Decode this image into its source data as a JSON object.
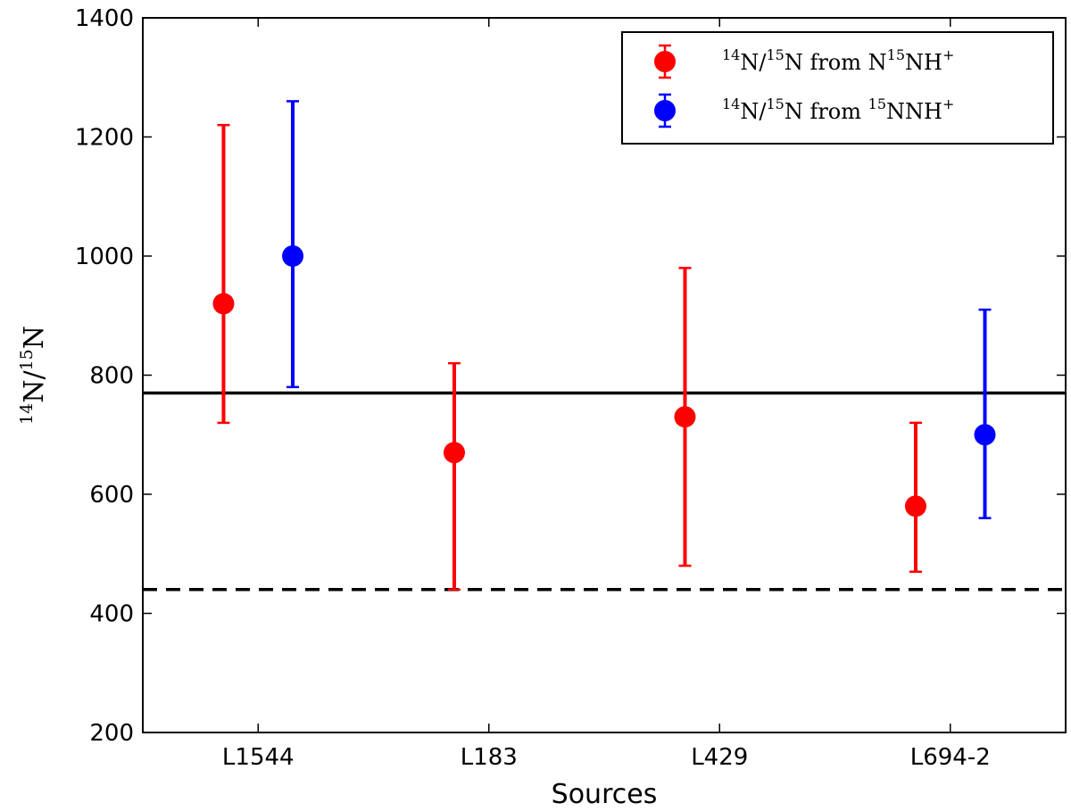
{
  "chart_data": {
    "type": "scatter",
    "xlabel": "Sources",
    "ylabel": {
      "base1": "N/",
      "base2": "N",
      "sup1": "14",
      "sup2": "15"
    },
    "categories": [
      "L1544",
      "L183",
      "L429",
      "L694-2"
    ],
    "ylim": [
      200,
      1400
    ],
    "yticks": [
      200,
      400,
      600,
      800,
      1000,
      1200,
      1400
    ],
    "legend_position": "top-right",
    "series": [
      {
        "color": "#ff0000",
        "legend": {
          "sup1": "14",
          "mid1": "N/",
          "sup2": "15",
          "mid2": "N from N",
          "sup3": "15",
          "mid3": "NH",
          "sup4": "+"
        },
        "points": [
          {
            "category": "L1544",
            "y": 920,
            "low": 720,
            "high": 1220
          },
          {
            "category": "L183",
            "y": 670,
            "low": 440,
            "high": 820
          },
          {
            "category": "L429",
            "y": 730,
            "low": 480,
            "high": 980
          },
          {
            "category": "L694-2",
            "y": 580,
            "low": 470,
            "high": 720
          }
        ]
      },
      {
        "color": "#0000ff",
        "legend": {
          "sup1": "14",
          "mid1": "N/",
          "sup2": "15",
          "mid2": "N from ",
          "sup3": "15",
          "mid3": "NNH",
          "sup4": "+"
        },
        "points": [
          {
            "category": "L1544",
            "y": 1000,
            "low": 780,
            "high": 1260
          },
          {
            "category": "L694-2",
            "y": 700,
            "low": 560,
            "high": 910
          }
        ]
      }
    ],
    "reference_lines": [
      {
        "y": 770,
        "style": "solid",
        "color": "#000000"
      },
      {
        "y": 440,
        "style": "dashed",
        "color": "#000000"
      }
    ]
  }
}
